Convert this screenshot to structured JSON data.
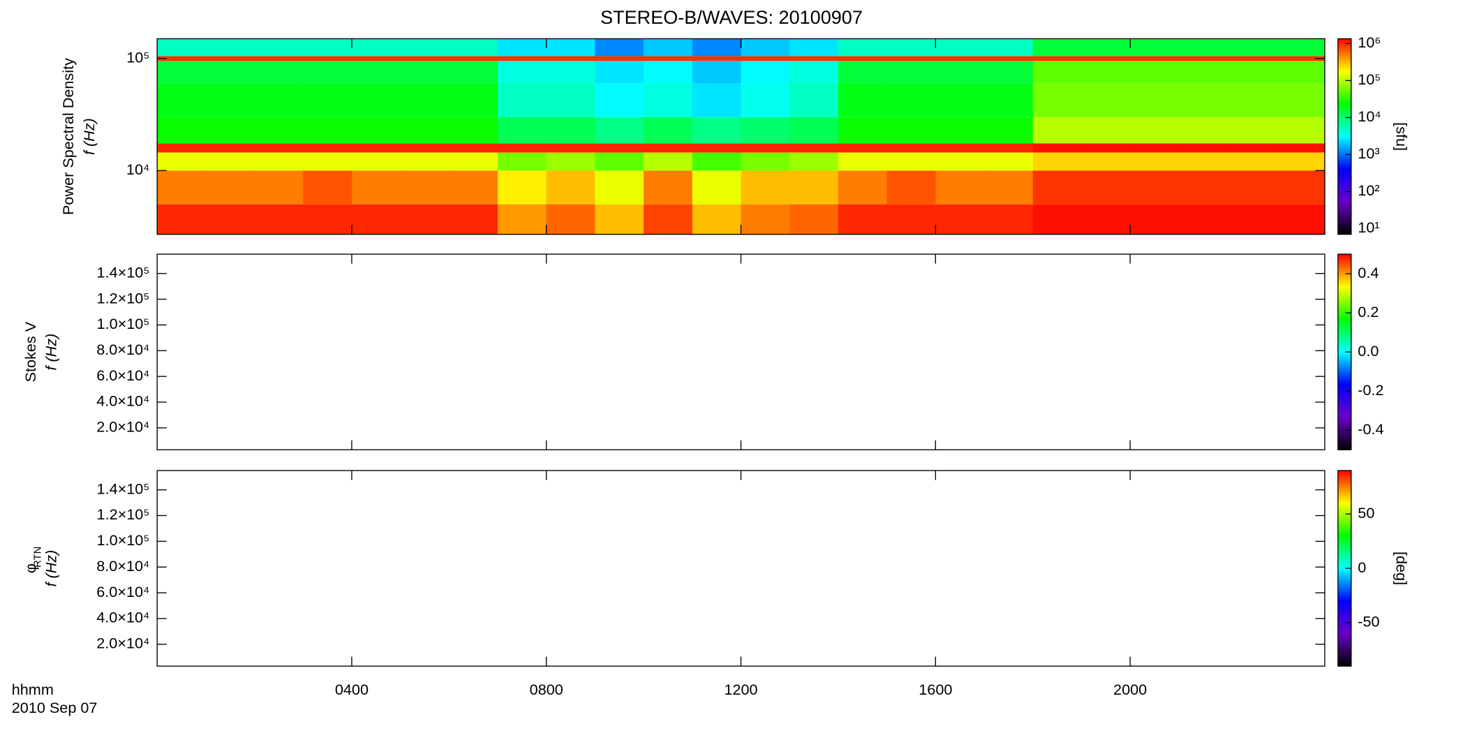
{
  "title": "STEREO-B/WAVES: 20100907",
  "chart_data": [
    {
      "type": "heatmap",
      "quantity": "Power Spectral Density",
      "ylabel": "f (Hz)",
      "ylog": true,
      "ylim": [
        2700,
        150000
      ],
      "yticks": [
        {
          "value": 10000,
          "label": "10⁴"
        },
        {
          "value": 100000,
          "label": "10⁵"
        }
      ],
      "zlabel": "[sfu]",
      "zlog": true,
      "zlim": [
        7,
        1350000
      ],
      "zticks": [
        {
          "value": 10,
          "label": "10¹"
        },
        {
          "value": 100,
          "label": "10²"
        },
        {
          "value": 1000,
          "label": "10³"
        },
        {
          "value": 10000,
          "label": "10⁴"
        },
        {
          "value": 100000,
          "label": "10⁵"
        },
        {
          "value": 1000000,
          "label": "10⁶"
        }
      ],
      "colormap": [
        "#000000",
        "#6a00c8",
        "#0000ff",
        "#00ffff",
        "#00ff00",
        "#ffff00",
        "#ff0000"
      ],
      "x_bins": [
        0,
        1,
        2,
        3,
        4,
        5,
        6,
        7,
        8,
        9,
        10,
        11,
        12,
        13,
        14,
        15,
        16,
        17,
        18,
        19,
        20,
        21,
        22,
        23,
        24
      ],
      "y_bins": [
        2700,
        5000,
        10000,
        14500,
        17500,
        30000,
        60000,
        95000,
        105000,
        150000
      ],
      "values": [
        [
          1000000,
          1000000,
          1000000,
          1000000,
          1000000,
          1000000,
          1000000,
          400000,
          600000,
          300000,
          800000,
          300000,
          500000,
          600000,
          1000000,
          1000000,
          1000000,
          1000000,
          1200000,
          1200000,
          1200000,
          1200000,
          1200000,
          1200000
        ],
        [
          500000,
          500000,
          500000,
          700000,
          500000,
          500000,
          500000,
          200000,
          300000,
          150000,
          500000,
          150000,
          300000,
          300000,
          500000,
          700000,
          500000,
          500000,
          900000,
          900000,
          900000,
          900000,
          900000,
          900000
        ],
        [
          150000,
          150000,
          150000,
          150000,
          150000,
          150000,
          150000,
          60000,
          80000,
          50000,
          100000,
          40000,
          60000,
          80000,
          150000,
          150000,
          150000,
          150000,
          250000,
          250000,
          250000,
          250000,
          250000,
          250000
        ],
        [
          1000000,
          1000000,
          1000000,
          1000000,
          1000000,
          1000000,
          1000000,
          1000000,
          1000000,
          1000000,
          1000000,
          1000000,
          1000000,
          1000000,
          1000000,
          1000000,
          1000000,
          1000000,
          1200000,
          1200000,
          1200000,
          1200000,
          1200000,
          1200000
        ],
        [
          25000,
          25000,
          25000,
          25000,
          25000,
          25000,
          25000,
          12000,
          12000,
          8000,
          12000,
          8000,
          10000,
          12000,
          25000,
          25000,
          25000,
          25000,
          100000,
          100000,
          100000,
          100000,
          100000,
          100000
        ],
        [
          20000,
          20000,
          20000,
          20000,
          20000,
          20000,
          20000,
          5000,
          5000,
          3000,
          4000,
          2500,
          3500,
          5000,
          20000,
          20000,
          20000,
          20000,
          60000,
          60000,
          60000,
          60000,
          60000,
          60000
        ],
        [
          15000,
          15000,
          15000,
          15000,
          15000,
          15000,
          15000,
          4000,
          4000,
          2500,
          3000,
          2000,
          3000,
          4000,
          15000,
          15000,
          15000,
          15000,
          50000,
          50000,
          50000,
          50000,
          50000,
          50000
        ],
        [
          900000,
          900000,
          900000,
          900000,
          900000,
          900000,
          900000,
          900000,
          900000,
          900000,
          900000,
          900000,
          900000,
          900000,
          900000,
          900000,
          900000,
          900000,
          900000,
          900000,
          900000,
          900000,
          900000,
          900000
        ],
        [
          5000,
          5000,
          5000,
          5000,
          5000,
          5000,
          5000,
          2500,
          2500,
          1200,
          2000,
          1200,
          2000,
          2500,
          5000,
          5000,
          5000,
          5000,
          15000,
          15000,
          15000,
          15000,
          15000,
          15000
        ]
      ]
    },
    {
      "type": "heatmap",
      "quantity": "Stokes V",
      "ylabel": "f (Hz)",
      "ylim": [
        3000,
        155000
      ],
      "yticks": [
        {
          "value": 20000,
          "label": "2.0×10⁴"
        },
        {
          "value": 40000,
          "label": "4.0×10⁴"
        },
        {
          "value": 60000,
          "label": "6.0×10⁴"
        },
        {
          "value": 80000,
          "label": "8.0×10⁴"
        },
        {
          "value": 100000,
          "label": "1.0×10⁵"
        },
        {
          "value": 120000,
          "label": "1.2×10⁵"
        },
        {
          "value": 140000,
          "label": "1.4×10⁵"
        }
      ],
      "zlim": [
        -0.5,
        0.5
      ],
      "zticks": [
        -0.4,
        -0.2,
        {
          "value": 0,
          "label": "0.0"
        },
        0.2,
        0.4
      ],
      "colormap": [
        "#000000",
        "#6a00c8",
        "#0000ff",
        "#00ffff",
        "#00ff00",
        "#ffff00",
        "#ff0000"
      ]
    },
    {
      "type": "heatmap",
      "quantity": "φ",
      "quantity_sub": "RTN",
      "ylabel": "f (Hz)",
      "ylim": [
        3000,
        155000
      ],
      "yticks": [
        {
          "value": 20000,
          "label": "2.0×10⁴"
        },
        {
          "value": 40000,
          "label": "4.0×10⁴"
        },
        {
          "value": 60000,
          "label": "6.0×10⁴"
        },
        {
          "value": 80000,
          "label": "8.0×10⁴"
        },
        {
          "value": 100000,
          "label": "1.0×10⁵"
        },
        {
          "value": 120000,
          "label": "1.2×10⁵"
        },
        {
          "value": 140000,
          "label": "1.4×10⁵"
        }
      ],
      "zlabel": "[deg]",
      "zlim": [
        -90,
        90
      ],
      "zticks": [
        -50,
        0,
        50
      ],
      "colormap": [
        "#000000",
        "#6a00c8",
        "#0000ff",
        "#00ffff",
        "#00ff00",
        "#ffff00",
        "#ff0000"
      ],
      "xlim": [
        0,
        24
      ],
      "xticks": [
        {
          "value": 4,
          "label": "0400"
        },
        {
          "value": 8,
          "label": "0800"
        },
        {
          "value": 12,
          "label": "1200"
        },
        {
          "value": 16,
          "label": "1600"
        },
        {
          "value": 20,
          "label": "2000"
        }
      ],
      "xlabel": "hhmm",
      "date": "2010 Sep 07"
    }
  ]
}
